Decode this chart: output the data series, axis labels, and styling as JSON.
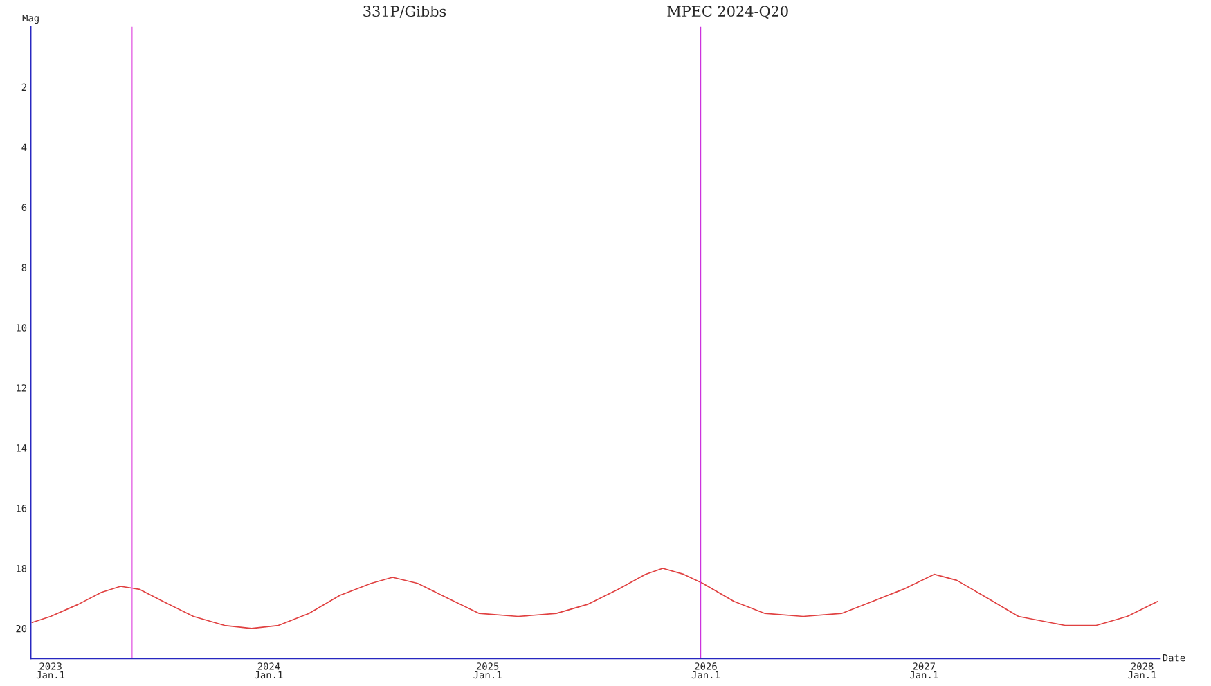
{
  "chart_data": {
    "type": "line",
    "title": "331P/Gibbs",
    "subtitle": "MPEC 2024-Q20",
    "xlabel": "Date",
    "ylabel": "Mag",
    "x": [
      "2022-12-01",
      "2023-01-01",
      "2023-02-16",
      "2023-03-27",
      "2023-04-28",
      "2023-05-30",
      "2023-07-08",
      "2023-08-28",
      "2023-10-19",
      "2023-12-03",
      "2024-01-17",
      "2024-03-08",
      "2024-04-29",
      "2024-06-20",
      "2024-07-26",
      "2024-09-06",
      "2024-10-27",
      "2024-12-18",
      "2025-02-21",
      "2025-04-26",
      "2025-06-17",
      "2025-08-07",
      "2025-09-22",
      "2025-10-21",
      "2025-11-25",
      "2025-12-27",
      "2026-02-17",
      "2026-04-10",
      "2026-06-13",
      "2026-08-16",
      "2026-10-07",
      "2026-11-27",
      "2027-01-18",
      "2027-02-25",
      "2027-04-18",
      "2027-06-08",
      "2027-08-25",
      "2027-10-16",
      "2027-12-07",
      "2028-01-27"
    ],
    "series": [
      {
        "color": "#e04040",
        "values": [
          19.8,
          19.6,
          19.2,
          18.8,
          18.6,
          18.7,
          19.1,
          19.6,
          19.9,
          20.0,
          19.9,
          19.5,
          18.9,
          18.5,
          18.3,
          18.5,
          19.0,
          19.5,
          19.6,
          19.5,
          19.2,
          18.7,
          18.2,
          18.0,
          18.2,
          18.5,
          19.1,
          19.5,
          19.6,
          19.5,
          19.1,
          18.7,
          18.2,
          18.4,
          19.0,
          19.6,
          19.9,
          19.9,
          19.6,
          19.1
        ]
      }
    ],
    "xlim": [
      "2022-11-29",
      "2028-01-31"
    ],
    "xticks": [
      {
        "value": "2023-01-01",
        "label": "2023\nJan.1"
      },
      {
        "value": "2024-01-01",
        "label": "2024\nJan.1"
      },
      {
        "value": "2025-01-01",
        "label": "2025\nJan.1"
      },
      {
        "value": "2026-01-01",
        "label": "2026\nJan.1"
      },
      {
        "value": "2027-01-01",
        "label": "2027\nJan.1"
      },
      {
        "value": "2028-01-01",
        "label": "2028\nJan.1"
      }
    ],
    "ylim": [
      21,
      0
    ],
    "yticks": [
      2,
      4,
      6,
      8,
      10,
      12,
      14,
      16,
      18,
      20
    ],
    "ref_lines": [
      {
        "axis": "x",
        "value": "2023-05-17",
        "color": "#e87de8"
      },
      {
        "axis": "x",
        "value": "2025-12-23",
        "color": "#cc33dd"
      }
    ],
    "grid": false,
    "legend": false,
    "marker": "none",
    "line_style": "solid"
  }
}
